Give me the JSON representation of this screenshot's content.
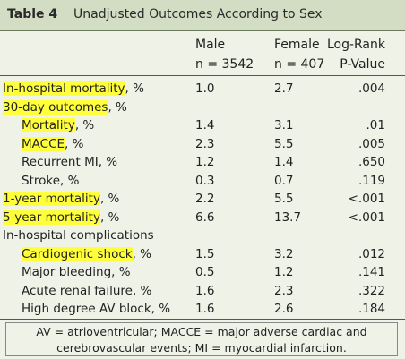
{
  "header": {
    "number": "Table 4",
    "title": "Unadjusted Outcomes According to Sex"
  },
  "table": {
    "columns": [
      [
        "Male",
        "n = 3542"
      ],
      [
        "Female",
        "n = 407"
      ],
      [
        "Log-Rank",
        "P-Value"
      ]
    ],
    "rows": [
      {
        "marked": "In-hospital mortality",
        "rest": ", %",
        "indent": false,
        "cells": [
          "1.0",
          "2.7",
          ".004"
        ]
      },
      {
        "marked": "30-day outcomes",
        "rest": ", %",
        "indent": false,
        "cells": []
      },
      {
        "marked": "Mortality",
        "rest": ", %",
        "indent": true,
        "cells": [
          "1.4",
          "3.1",
          ".01"
        ]
      },
      {
        "marked": "MACCE",
        "rest": ", %",
        "indent": true,
        "cells": [
          "2.3",
          "5.5",
          ".005"
        ]
      },
      {
        "rest": "Recurrent MI, %",
        "indent": true,
        "cells": [
          "1.2",
          "1.4",
          ".650"
        ]
      },
      {
        "rest": "Stroke, %",
        "indent": true,
        "cells": [
          "0.3",
          "0.7",
          ".119"
        ]
      },
      {
        "marked": "1-year mortality",
        "rest": ", %",
        "indent": false,
        "cells": [
          "2.2",
          "5.5",
          "<.001"
        ]
      },
      {
        "marked": "5-year mortality",
        "rest": ", %",
        "indent": false,
        "cells": [
          "6.6",
          "13.7",
          "<.001"
        ]
      },
      {
        "rest": "In-hospital complications",
        "indent": false,
        "cells": []
      },
      {
        "marked": "Cardiogenic shock",
        "rest": ", %",
        "indent": true,
        "cells": [
          "1.5",
          "3.2",
          ".012"
        ]
      },
      {
        "rest": "Major bleeding, %",
        "indent": true,
        "cells": [
          "0.5",
          "1.2",
          ".141"
        ]
      },
      {
        "rest": "Acute renal failure, %",
        "indent": true,
        "cells": [
          "1.6",
          "2.3",
          ".322"
        ]
      },
      {
        "rest": "High degree AV block, %",
        "indent": true,
        "cells": [
          "1.6",
          "2.6",
          ".184"
        ]
      }
    ]
  },
  "footnote": "AV = atrioventricular; MACCE = major adverse cardiac and cerebrovascular events; MI = myocardial infarction."
}
